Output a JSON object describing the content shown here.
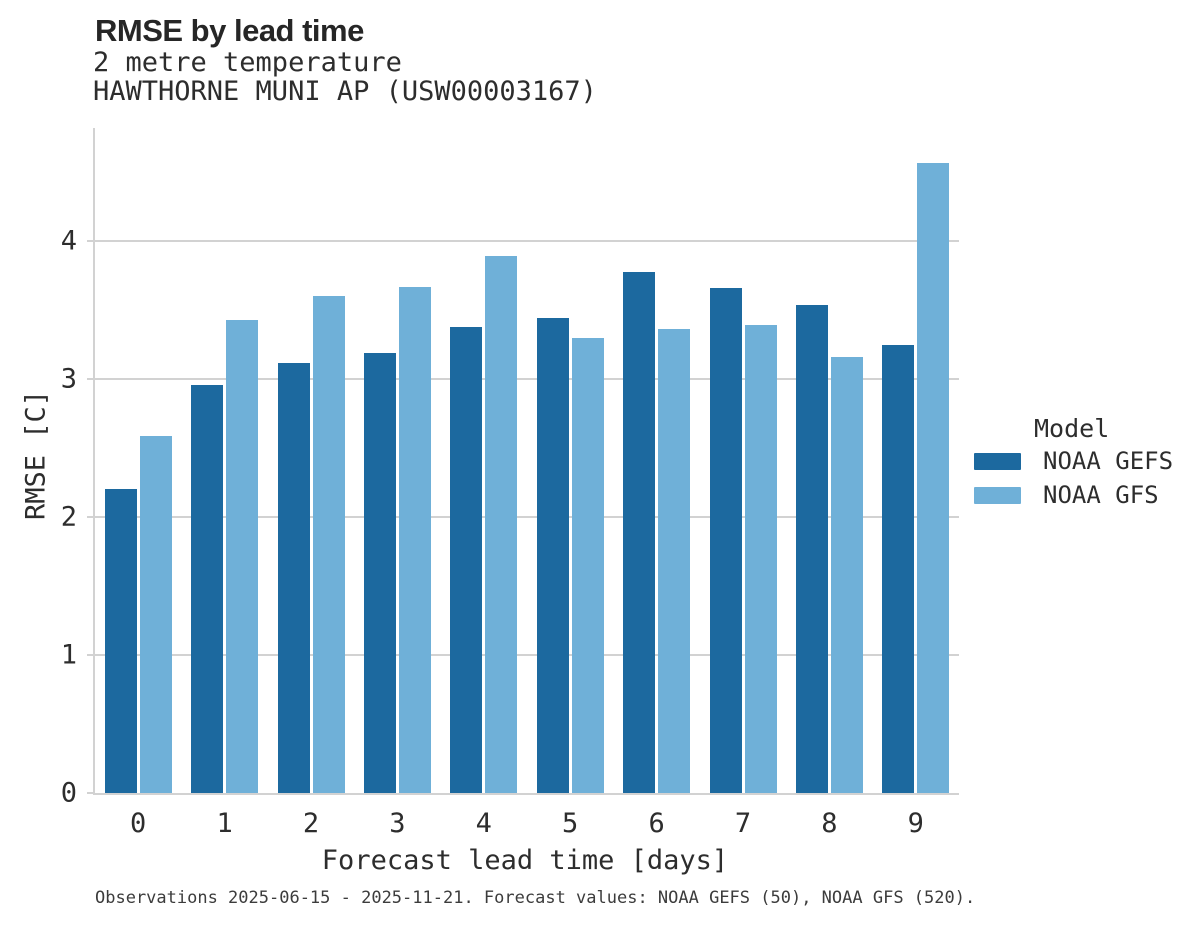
{
  "header": {
    "title": "RMSE by lead time",
    "subtitle_line1": "2 metre temperature",
    "subtitle_line2": "HAWTHORNE MUNI AP (USW00003167)"
  },
  "legend": {
    "title": "Model",
    "items": [
      {
        "label": "NOAA GEFS",
        "color": "#1c699f"
      },
      {
        "label": "NOAA GFS",
        "color": "#6fb0d8"
      }
    ]
  },
  "footer": {
    "note": "Observations 2025-06-15 - 2025-11-21. Forecast values: NOAA GEFS (50), NOAA GFS (520)."
  },
  "colors": {
    "noaa_gefs": "#1c699f",
    "noaa_gfs": "#6fb0d8",
    "gridline": "#d2d2d2",
    "text": "#2d2d2d"
  },
  "chart_data": {
    "type": "bar",
    "title": "RMSE by lead time",
    "subtitle": [
      "2 metre temperature",
      "HAWTHORNE MUNI AP (USW00003167)"
    ],
    "xlabel": "Forecast lead time [days]",
    "ylabel": "RMSE [C]",
    "categories": [
      "0",
      "1",
      "2",
      "3",
      "4",
      "5",
      "6",
      "7",
      "8",
      "9"
    ],
    "series": [
      {
        "name": "NOAA GEFS",
        "color": "#1c699f",
        "values": [
          2.2,
          2.96,
          3.12,
          3.19,
          3.38,
          3.44,
          3.78,
          3.66,
          3.54,
          3.25
        ]
      },
      {
        "name": "NOAA GFS",
        "color": "#6fb0d8",
        "values": [
          2.59,
          3.43,
          3.6,
          3.67,
          3.89,
          3.3,
          3.36,
          3.39,
          3.16,
          4.57
        ]
      }
    ],
    "ylim": [
      0,
      4.82
    ],
    "yticks": [
      0,
      1,
      2,
      3,
      4
    ],
    "grid": true,
    "legend_title": "Model",
    "legend_position": "right"
  }
}
